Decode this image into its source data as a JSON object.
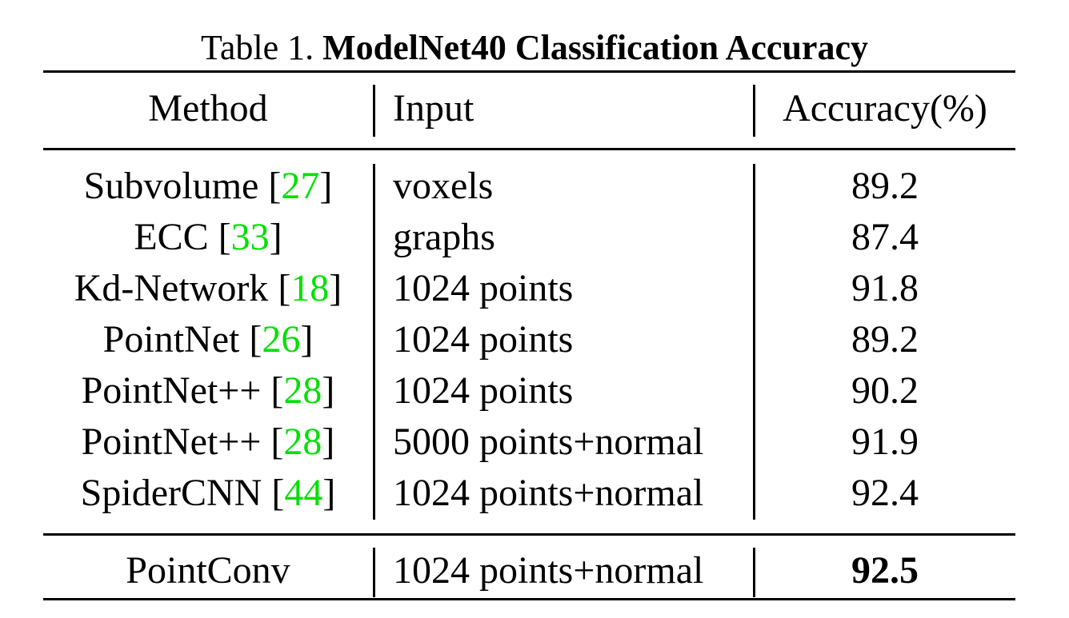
{
  "caption": {
    "prefix": "Table 1. ",
    "title": "ModelNet40 Classification Accuracy"
  },
  "table": {
    "headers": {
      "method": "Method",
      "input": "Input",
      "accuracy": "Accuracy(%)"
    },
    "rows": [
      {
        "method": "Subvolume",
        "ref": "27",
        "input": "voxels",
        "accuracy": "89.2"
      },
      {
        "method": "ECC",
        "ref": "33",
        "input": "graphs",
        "accuracy": "87.4"
      },
      {
        "method": "Kd-Network",
        "ref": "18",
        "input": "1024 points",
        "accuracy": "91.8"
      },
      {
        "method": "PointNet",
        "ref": "26",
        "input": "1024 points",
        "accuracy": "89.2"
      },
      {
        "method": "PointNet++",
        "ref": "28",
        "input": "1024 points",
        "accuracy": "90.2"
      },
      {
        "method": "PointNet++",
        "ref": "28",
        "input": "5000 points+normal",
        "accuracy": "91.9"
      },
      {
        "method": "SpiderCNN",
        "ref": "44",
        "input": "1024 points+normal",
        "accuracy": "92.4"
      }
    ],
    "ours": {
      "method": "PointConv",
      "input": "1024 points+normal",
      "accuracy": "92.5"
    }
  },
  "colors": {
    "citation": "#00e000"
  }
}
